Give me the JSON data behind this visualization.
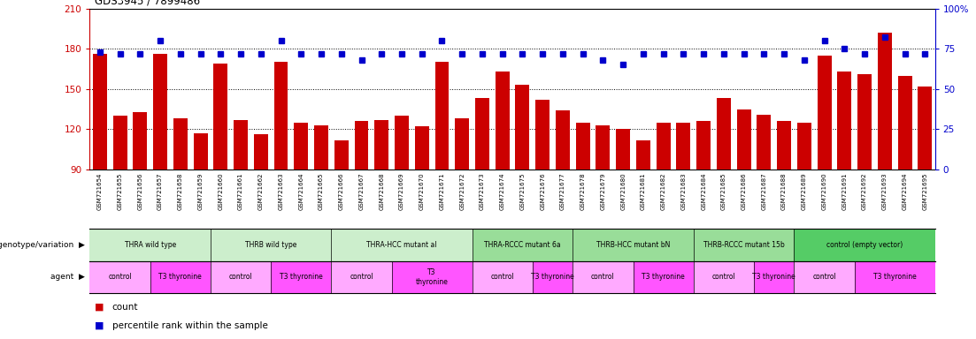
{
  "title": "GDS3945 / 7899486",
  "samples": [
    "GSM721654",
    "GSM721655",
    "GSM721656",
    "GSM721657",
    "GSM721658",
    "GSM721659",
    "GSM721660",
    "GSM721661",
    "GSM721662",
    "GSM721663",
    "GSM721664",
    "GSM721665",
    "GSM721666",
    "GSM721667",
    "GSM721668",
    "GSM721669",
    "GSM721670",
    "GSM721671",
    "GSM721672",
    "GSM721673",
    "GSM721674",
    "GSM721675",
    "GSM721676",
    "GSM721677",
    "GSM721678",
    "GSM721679",
    "GSM721680",
    "GSM721681",
    "GSM721682",
    "GSM721683",
    "GSM721684",
    "GSM721685",
    "GSM721686",
    "GSM721687",
    "GSM721688",
    "GSM721689",
    "GSM721690",
    "GSM721691",
    "GSM721692",
    "GSM721693",
    "GSM721694",
    "GSM721695"
  ],
  "counts": [
    176,
    130,
    133,
    176,
    128,
    117,
    169,
    127,
    116,
    170,
    125,
    123,
    112,
    126,
    127,
    130,
    122,
    170,
    128,
    143,
    163,
    153,
    142,
    134,
    125,
    123,
    120,
    112,
    125,
    125,
    126,
    143,
    135,
    131,
    126,
    125,
    175,
    163,
    161,
    192,
    160,
    152
  ],
  "percentile": [
    73,
    72,
    72,
    80,
    72,
    72,
    72,
    72,
    72,
    80,
    72,
    72,
    72,
    68,
    72,
    72,
    72,
    80,
    72,
    72,
    72,
    72,
    72,
    72,
    72,
    68,
    65,
    72,
    72,
    72,
    72,
    72,
    72,
    72,
    72,
    68,
    80,
    75,
    72,
    82,
    72,
    72
  ],
  "bar_color": "#cc0000",
  "marker_color": "#0000cc",
  "ylim_left": [
    90,
    210
  ],
  "ylim_right": [
    0,
    100
  ],
  "yticks_left": [
    90,
    120,
    150,
    180,
    210
  ],
  "yticks_right": [
    0,
    25,
    50,
    75,
    100
  ],
  "gridlines": [
    90,
    120,
    150,
    180
  ],
  "genotype_groups": [
    {
      "label": "THRA wild type",
      "start": 0,
      "end": 5,
      "color": "#cceecc"
    },
    {
      "label": "THRB wild type",
      "start": 6,
      "end": 11,
      "color": "#cceecc"
    },
    {
      "label": "THRA-HCC mutant al",
      "start": 12,
      "end": 18,
      "color": "#cceecc"
    },
    {
      "label": "THRA-RCCC mutant 6a",
      "start": 19,
      "end": 23,
      "color": "#99dd99"
    },
    {
      "label": "THRB-HCC mutant bN",
      "start": 24,
      "end": 29,
      "color": "#99dd99"
    },
    {
      "label": "THRB-RCCC mutant 15b",
      "start": 30,
      "end": 34,
      "color": "#99dd99"
    },
    {
      "label": "control (empty vector)",
      "start": 35,
      "end": 41,
      "color": "#55cc66"
    }
  ],
  "agent_groups": [
    {
      "label": "control",
      "start": 0,
      "end": 2,
      "color": "#ffaaff"
    },
    {
      "label": "T3 thyronine",
      "start": 3,
      "end": 5,
      "color": "#ff55ff"
    },
    {
      "label": "control",
      "start": 6,
      "end": 8,
      "color": "#ffaaff"
    },
    {
      "label": "T3 thyronine",
      "start": 9,
      "end": 11,
      "color": "#ff55ff"
    },
    {
      "label": "control",
      "start": 12,
      "end": 14,
      "color": "#ffaaff"
    },
    {
      "label": "T3\nthyronine",
      "start": 15,
      "end": 18,
      "color": "#ff55ff"
    },
    {
      "label": "control",
      "start": 19,
      "end": 21,
      "color": "#ffaaff"
    },
    {
      "label": "T3 thyronine",
      "start": 22,
      "end": 23,
      "color": "#ff55ff"
    },
    {
      "label": "control",
      "start": 24,
      "end": 26,
      "color": "#ffaaff"
    },
    {
      "label": "T3 thyronine",
      "start": 27,
      "end": 29,
      "color": "#ff55ff"
    },
    {
      "label": "control",
      "start": 30,
      "end": 32,
      "color": "#ffaaff"
    },
    {
      "label": "T3 thyronine",
      "start": 33,
      "end": 34,
      "color": "#ff55ff"
    },
    {
      "label": "control",
      "start": 35,
      "end": 37,
      "color": "#ffaaff"
    },
    {
      "label": "T3 thyronine",
      "start": 38,
      "end": 41,
      "color": "#ff55ff"
    }
  ],
  "legend_count_color": "#cc0000",
  "legend_percentile_color": "#0000cc",
  "bg_color": "#ffffff",
  "xtick_bg": "#dddddd"
}
